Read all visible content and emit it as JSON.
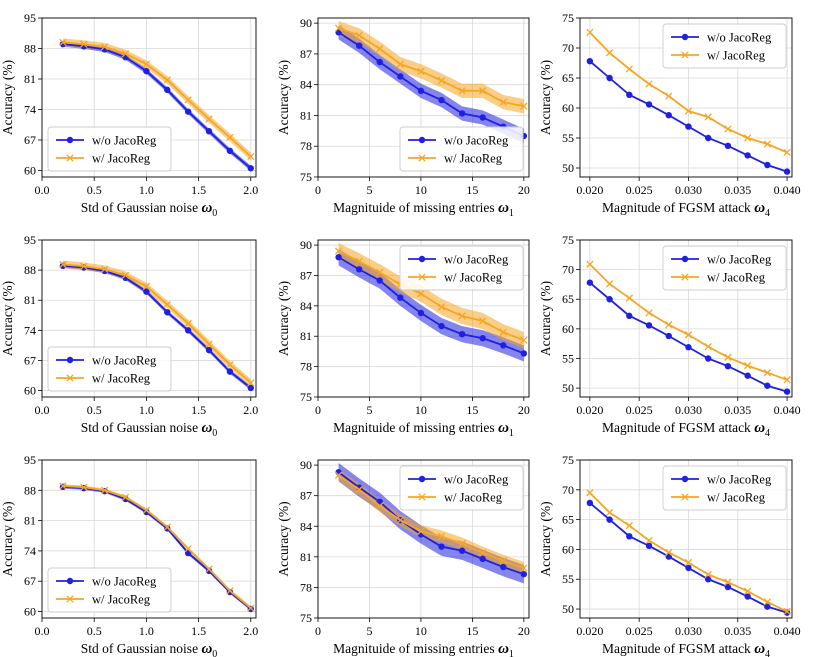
{
  "colors": {
    "wo": "#2020e0",
    "w": "#f5a623",
    "grid": "#d9d9d9"
  },
  "chart_data": [
    {
      "type": "line",
      "xlabel": "Std of Gaussian noise",
      "xsym": "ω",
      "xsub": "0",
      "ylabel": "Accuracy (%)",
      "xlim": [
        0.0,
        2.05
      ],
      "ylim": [
        58.5,
        95.0
      ],
      "xticks": [
        0.0,
        0.5,
        1.0,
        1.5,
        2.0
      ],
      "xtick_labels": [
        "0.0",
        "0.5",
        "1.0",
        "1.5",
        "2.0"
      ],
      "yticks": [
        60,
        67,
        74,
        81,
        88,
        95
      ],
      "ytick_labels": [
        "60",
        "67",
        "74",
        "81",
        "88",
        "95"
      ],
      "legend": "lower-left",
      "x": [
        0.2,
        0.4,
        0.6,
        0.8,
        1.0,
        1.2,
        1.4,
        1.6,
        1.8,
        2.0
      ],
      "series": [
        {
          "name": "w/o JacoReg",
          "marker": "circle",
          "values": [
            89.0,
            88.5,
            87.8,
            86.0,
            82.8,
            78.5,
            73.5,
            69.0,
            64.5,
            60.5
          ],
          "band": 0.6
        },
        {
          "name": "w/ JacoReg",
          "marker": "x",
          "values": [
            89.4,
            89.0,
            88.4,
            86.8,
            84.4,
            80.8,
            76.2,
            71.8,
            67.6,
            63.2
          ],
          "band": 0.9
        }
      ]
    },
    {
      "type": "line",
      "xlabel": "Magnituide of missing entries",
      "xsym": "ω",
      "xsub": "1",
      "ylabel": "Accuracy (%)",
      "xlim": [
        0,
        20.5
      ],
      "ylim": [
        75,
        90.5
      ],
      "xticks": [
        0,
        5,
        10,
        15,
        20
      ],
      "xtick_labels": [
        "0",
        "5",
        "10",
        "15",
        "20"
      ],
      "yticks": [
        75,
        78,
        81,
        84,
        87,
        90
      ],
      "ytick_labels": [
        "75",
        "78",
        "81",
        "84",
        "87",
        "90"
      ],
      "legend": "lower-right",
      "x": [
        2,
        4,
        6,
        8,
        10,
        12,
        14,
        16,
        18,
        20
      ],
      "series": [
        {
          "name": "w/o JacoReg",
          "marker": "circle",
          "values": [
            89.1,
            87.8,
            86.2,
            84.8,
            83.4,
            82.5,
            81.2,
            80.8,
            79.9,
            79.0
          ],
          "band": 0.7
        },
        {
          "name": "w/ JacoReg",
          "marker": "x",
          "values": [
            89.5,
            88.8,
            87.5,
            86.0,
            85.3,
            84.4,
            83.4,
            83.4,
            82.3,
            81.9
          ],
          "band": 0.7
        }
      ]
    },
    {
      "type": "line",
      "xlabel": "Magnitude of FGSM attack",
      "xsym": "ω",
      "xsub": "4",
      "ylabel": "Accuracy (%)",
      "xlim": [
        0.019,
        0.0405
      ],
      "ylim": [
        48.5,
        75
      ],
      "xticks": [
        0.02,
        0.025,
        0.03,
        0.035,
        0.04
      ],
      "xtick_labels": [
        "0.020",
        "0.025",
        "0.030",
        "0.035",
        "0.040"
      ],
      "yticks": [
        50,
        55,
        60,
        65,
        70,
        75
      ],
      "ytick_labels": [
        "50",
        "55",
        "60",
        "65",
        "70",
        "75"
      ],
      "legend": "upper-right",
      "x": [
        0.02,
        0.022,
        0.024,
        0.026,
        0.028,
        0.03,
        0.032,
        0.034,
        0.036,
        0.038,
        0.04
      ],
      "series": [
        {
          "name": "w/o JacoReg",
          "marker": "circle",
          "values": [
            67.8,
            65.0,
            62.2,
            60.6,
            58.8,
            56.9,
            55.0,
            53.7,
            52.1,
            50.5,
            49.4
          ],
          "band": 0
        },
        {
          "name": "w/ JacoReg",
          "marker": "x",
          "values": [
            72.6,
            69.2,
            66.5,
            64.0,
            62.0,
            59.5,
            58.5,
            56.5,
            55.0,
            54.0,
            52.6
          ],
          "band": 0
        }
      ]
    },
    {
      "type": "line",
      "xlabel": "Std of Gaussian noise",
      "xsym": "ω",
      "xsub": "0",
      "ylabel": "Accuracy (%)",
      "xlim": [
        0.0,
        2.05
      ],
      "ylim": [
        58.5,
        95.0
      ],
      "xticks": [
        0.0,
        0.5,
        1.0,
        1.5,
        2.0
      ],
      "xtick_labels": [
        "0.0",
        "0.5",
        "1.0",
        "1.5",
        "2.0"
      ],
      "yticks": [
        60,
        67,
        74,
        81,
        88,
        95
      ],
      "ytick_labels": [
        "60",
        "67",
        "74",
        "81",
        "88",
        "95"
      ],
      "legend": "lower-left",
      "x": [
        0.2,
        0.4,
        0.6,
        0.8,
        1.0,
        1.2,
        1.4,
        1.6,
        1.8,
        2.0
      ],
      "series": [
        {
          "name": "w/o JacoReg",
          "marker": "circle",
          "values": [
            89.0,
            88.6,
            87.8,
            86.2,
            83.0,
            78.2,
            74.0,
            69.4,
            64.4,
            60.6
          ],
          "band": 0.5
        },
        {
          "name": "w/ JacoReg",
          "marker": "x",
          "values": [
            89.3,
            88.9,
            88.2,
            86.8,
            84.2,
            80.0,
            75.6,
            70.8,
            66.0,
            61.8
          ],
          "band": 0.9
        }
      ]
    },
    {
      "type": "line",
      "xlabel": "Magnituide of missing entries",
      "xsym": "ω",
      "xsub": "1",
      "ylabel": "Accuracy (%)",
      "xlim": [
        0,
        20.5
      ],
      "ylim": [
        75,
        90.5
      ],
      "xticks": [
        0,
        5,
        10,
        15,
        20
      ],
      "xtick_labels": [
        "0",
        "5",
        "10",
        "15",
        "20"
      ],
      "yticks": [
        75,
        78,
        81,
        84,
        87,
        90
      ],
      "ytick_labels": [
        "75",
        "78",
        "81",
        "84",
        "87",
        "90"
      ],
      "legend": "upper-right",
      "x": [
        2,
        4,
        6,
        8,
        10,
        12,
        14,
        16,
        18,
        20
      ],
      "series": [
        {
          "name": "w/o JacoReg",
          "marker": "circle",
          "values": [
            88.8,
            87.6,
            86.5,
            84.8,
            83.3,
            82.0,
            81.2,
            80.8,
            80.1,
            79.3
          ],
          "band": 0.8
        },
        {
          "name": "w/ JacoReg",
          "marker": "x",
          "values": [
            89.4,
            88.4,
            87.3,
            86.1,
            85.2,
            83.9,
            83.0,
            82.5,
            81.4,
            80.6
          ],
          "band": 0.8
        }
      ]
    },
    {
      "type": "line",
      "xlabel": "Magnitude of FGSM attack",
      "xsym": "ω",
      "xsub": "4",
      "ylabel": "Accuracy (%)",
      "xlim": [
        0.019,
        0.0405
      ],
      "ylim": [
        48.5,
        75
      ],
      "xticks": [
        0.02,
        0.025,
        0.03,
        0.035,
        0.04
      ],
      "xtick_labels": [
        "0.020",
        "0.025",
        "0.030",
        "0.035",
        "0.040"
      ],
      "yticks": [
        50,
        55,
        60,
        65,
        70,
        75
      ],
      "ytick_labels": [
        "50",
        "55",
        "60",
        "65",
        "70",
        "75"
      ],
      "legend": "upper-right",
      "x": [
        0.02,
        0.022,
        0.024,
        0.026,
        0.028,
        0.03,
        0.032,
        0.034,
        0.036,
        0.038,
        0.04
      ],
      "series": [
        {
          "name": "w/o JacoReg",
          "marker": "circle",
          "values": [
            67.8,
            65.0,
            62.2,
            60.6,
            58.8,
            56.9,
            55.0,
            53.7,
            52.1,
            50.4,
            49.4
          ],
          "band": 0
        },
        {
          "name": "w/ JacoReg",
          "marker": "x",
          "values": [
            70.9,
            67.6,
            65.2,
            62.7,
            60.7,
            59.0,
            57.0,
            55.2,
            53.8,
            52.6,
            51.4
          ],
          "band": 0
        }
      ]
    },
    {
      "type": "line",
      "xlabel": "Std of Gaussian noise",
      "xsym": "ω",
      "xsub": "0",
      "ylabel": "Accuracy (%)",
      "xlim": [
        0.0,
        2.05
      ],
      "ylim": [
        58.5,
        95.0
      ],
      "xticks": [
        0.0,
        0.5,
        1.0,
        1.5,
        2.0
      ],
      "xtick_labels": [
        "0.0",
        "0.5",
        "1.0",
        "1.5",
        "2.0"
      ],
      "yticks": [
        60,
        67,
        74,
        81,
        88,
        95
      ],
      "ytick_labels": [
        "60",
        "67",
        "74",
        "81",
        "88",
        "95"
      ],
      "legend": "lower-left",
      "x": [
        0.2,
        0.4,
        0.6,
        0.8,
        1.0,
        1.2,
        1.4,
        1.6,
        1.8,
        2.0
      ],
      "series": [
        {
          "name": "w/o JacoReg",
          "marker": "circle",
          "values": [
            88.8,
            88.5,
            87.8,
            86.0,
            83.0,
            79.2,
            73.5,
            69.4,
            64.5,
            60.6
          ],
          "band": 0.4
        },
        {
          "name": "w/ JacoReg",
          "marker": "x",
          "values": [
            89.0,
            88.7,
            88.0,
            86.4,
            83.4,
            79.5,
            74.5,
            69.8,
            64.8,
            60.8
          ],
          "band": 0.4
        }
      ]
    },
    {
      "type": "line",
      "xlabel": "Magnituide of missing entries",
      "xsym": "ω",
      "xsub": "1",
      "ylabel": "Accuracy (%)",
      "xlim": [
        0,
        20.5
      ],
      "ylim": [
        75,
        90.5
      ],
      "xticks": [
        0,
        5,
        10,
        15,
        20
      ],
      "xtick_labels": [
        "0",
        "5",
        "10",
        "15",
        "20"
      ],
      "yticks": [
        75,
        78,
        81,
        84,
        87,
        90
      ],
      "ytick_labels": [
        "75",
        "78",
        "81",
        "84",
        "87",
        "90"
      ],
      "legend": "upper-right",
      "x": [
        2,
        4,
        6,
        8,
        10,
        12,
        14,
        16,
        18,
        20
      ],
      "series": [
        {
          "name": "w/o JacoReg",
          "marker": "circle",
          "values": [
            89.3,
            87.8,
            86.4,
            84.6,
            83.2,
            82.0,
            81.6,
            80.8,
            80.0,
            79.3
          ],
          "band": 0.9
        },
        {
          "name": "w/ JacoReg",
          "marker": "x",
          "values": [
            89.0,
            87.6,
            86.0,
            84.6,
            83.5,
            83.0,
            82.3,
            81.4,
            80.6,
            79.9
          ],
          "band": 0.6
        }
      ]
    },
    {
      "type": "line",
      "xlabel": "Magnitude of FGSM attack",
      "xsym": "ω",
      "xsub": "4",
      "ylabel": "Accuracy (%)",
      "xlim": [
        0.019,
        0.0405
      ],
      "ylim": [
        48.5,
        75
      ],
      "xticks": [
        0.02,
        0.025,
        0.03,
        0.035,
        0.04
      ],
      "xtick_labels": [
        "0.020",
        "0.025",
        "0.030",
        "0.035",
        "0.040"
      ],
      "yticks": [
        50,
        55,
        60,
        65,
        70,
        75
      ],
      "ytick_labels": [
        "50",
        "55",
        "60",
        "65",
        "70",
        "75"
      ],
      "legend": "upper-right",
      "x": [
        0.02,
        0.022,
        0.024,
        0.026,
        0.028,
        0.03,
        0.032,
        0.034,
        0.036,
        0.038,
        0.04
      ],
      "series": [
        {
          "name": "w/o JacoReg",
          "marker": "circle",
          "values": [
            67.8,
            65.0,
            62.2,
            60.6,
            58.8,
            56.9,
            55.0,
            53.7,
            52.1,
            50.4,
            49.4
          ],
          "band": 0
        },
        {
          "name": "w/ JacoReg",
          "marker": "x",
          "values": [
            69.5,
            66.2,
            64.0,
            61.5,
            59.5,
            57.8,
            55.8,
            54.5,
            53.0,
            51.2,
            49.6
          ],
          "band": 0
        }
      ]
    }
  ]
}
